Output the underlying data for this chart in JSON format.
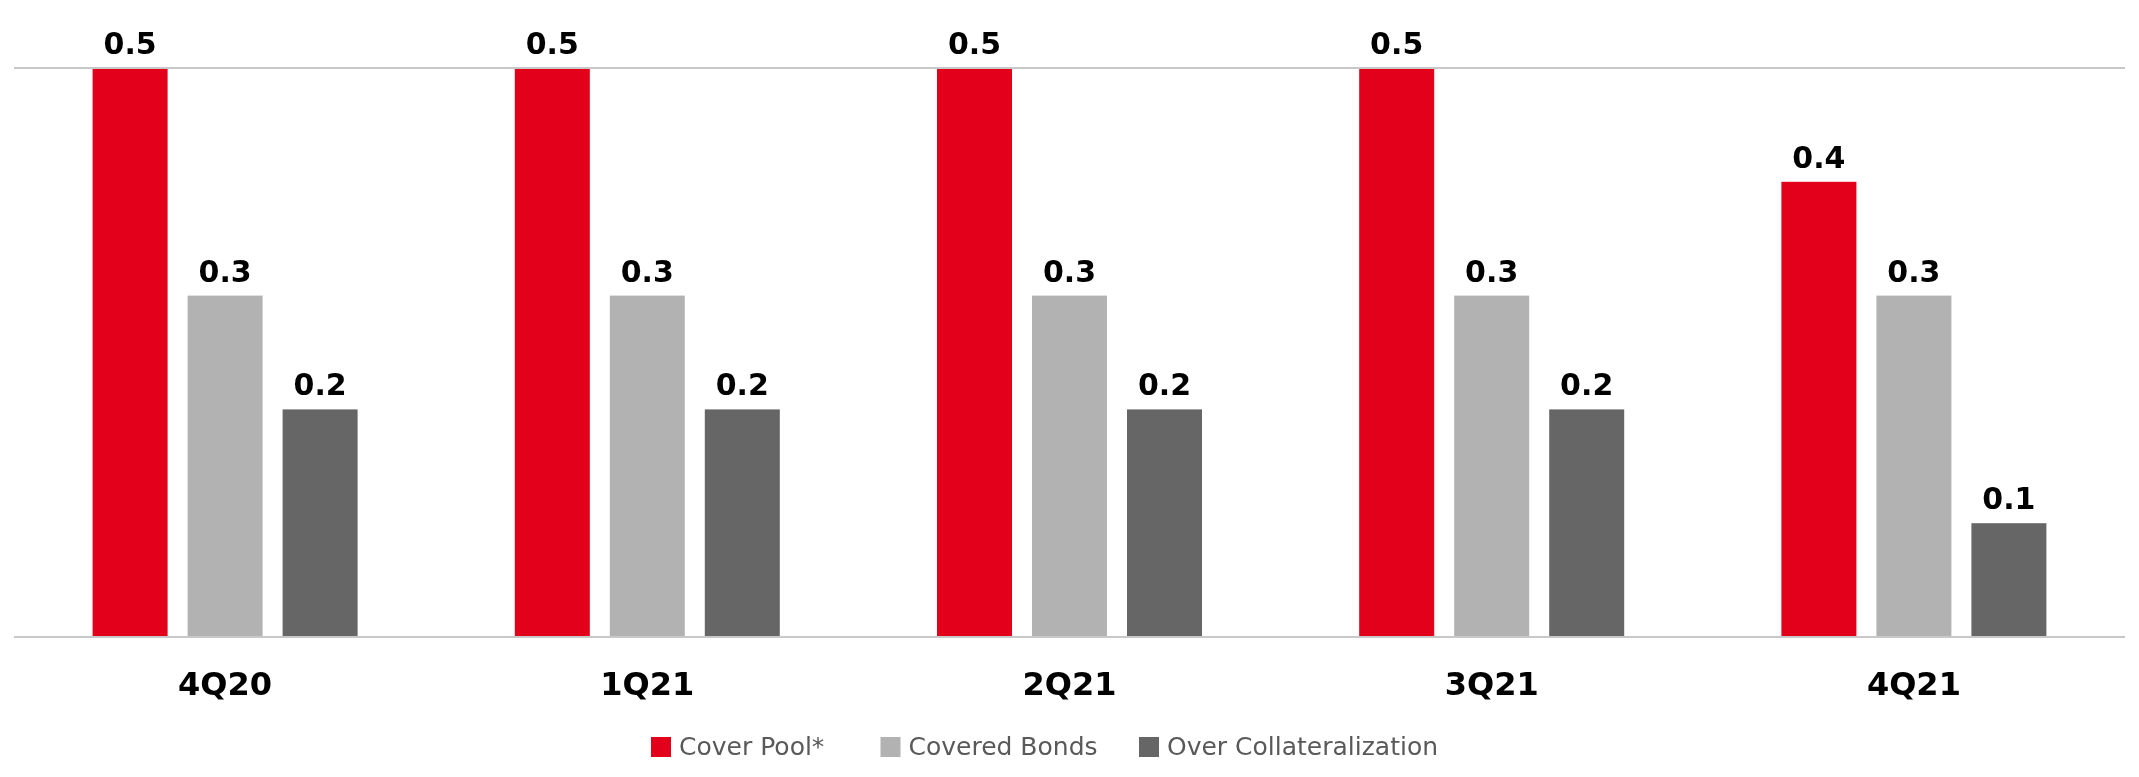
{
  "chart_data": {
    "type": "bar",
    "categories": [
      "4Q20",
      "1Q21",
      "2Q21",
      "3Q21",
      "4Q21"
    ],
    "series": [
      {
        "name": "Cover Pool*",
        "color": "#e2001a",
        "values": [
          0.5,
          0.5,
          0.5,
          0.5,
          0.4
        ]
      },
      {
        "name": "Covered Bonds",
        "color": "#b2b2b2",
        "values": [
          0.3,
          0.3,
          0.3,
          0.3,
          0.3
        ]
      },
      {
        "name": "Over Collateralization",
        "color": "#666666",
        "values": [
          0.2,
          0.2,
          0.2,
          0.2,
          0.1
        ]
      }
    ],
    "ylim": [
      0,
      0.5
    ],
    "tick_labels": "x",
    "data_labels": true,
    "legend": "bottom"
  }
}
